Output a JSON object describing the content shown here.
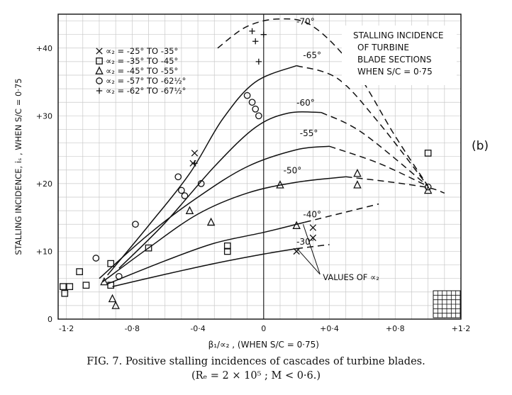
{
  "figure": {
    "panel_label": "(b)",
    "caption_line1": "FIG. 7.   Positive stalling incidences of cascades of turbine blades.",
    "caption_line2": "(Rₑ = 2 × 10⁵ ; M < 0·6.)"
  },
  "chart_data": {
    "type": "scatter",
    "title": "STALLING INCIDENCE OF TURBINE BLADE SECTIONS WHEN S/C = 0·75",
    "title_lines": [
      "STALLING INCIDENCE",
      "OF TURBINE",
      "BLADE SECTIONS",
      "WHEN S/C = 0·75"
    ],
    "xlabel": "β₁/∝₂ ,  (WHEN  S/C = 0·75)",
    "ylabel": "STALLING  INCIDENCE, iₛ , WHEN S/C = 0·75",
    "xlim": [
      -1.25,
      1.2
    ],
    "ylim": [
      0,
      45
    ],
    "grid": true,
    "legend_position": "top-left",
    "x_ticks": [
      {
        "v": -1.2,
        "label": "-1·2"
      },
      {
        "v": -0.8,
        "label": "-0·8"
      },
      {
        "v": -0.4,
        "label": "-0·4"
      },
      {
        "v": 0,
        "label": "0"
      },
      {
        "v": 0.4,
        "label": "+0·4"
      },
      {
        "v": 0.8,
        "label": "+0·8"
      },
      {
        "v": 1.2,
        "label": "+1·2"
      }
    ],
    "y_ticks": [
      {
        "v": 0,
        "label": "0"
      },
      {
        "v": 10,
        "label": "+10"
      },
      {
        "v": 20,
        "label": "+20"
      },
      {
        "v": 30,
        "label": "+30"
      },
      {
        "v": 40,
        "label": "+40"
      }
    ],
    "legend": [
      {
        "marker": "x",
        "label": "∝₂ = -25° TO -35°"
      },
      {
        "marker": "square",
        "label": "∝₂ = -35° TO -45°"
      },
      {
        "marker": "triangle",
        "label": "∝₂ = -45° TO -55°"
      },
      {
        "marker": "circle",
        "label": "∝₂ = -57° TO -62½°"
      },
      {
        "marker": "plus",
        "label": "∝₂ = -62° TO -67½°"
      }
    ],
    "curves": [
      {
        "name": "-30°",
        "label_at": [
          0.2,
          11
        ],
        "solid": [
          [
            -0.92,
            4.8
          ],
          [
            -0.6,
            6.6
          ],
          [
            -0.3,
            8.2
          ],
          [
            0.0,
            9.6
          ],
          [
            0.2,
            10.4
          ]
        ],
        "dashed": [
          [
            0.2,
            10.4
          ],
          [
            0.4,
            11.0
          ]
        ]
      },
      {
        "name": "-40°",
        "label_at": [
          0.24,
          15
        ],
        "solid": [
          [
            -0.95,
            5.2
          ],
          [
            -0.6,
            8.6
          ],
          [
            -0.3,
            11.2
          ],
          [
            0.0,
            12.8
          ],
          [
            0.25,
            14.3
          ]
        ],
        "dashed": [
          [
            0.25,
            14.3
          ],
          [
            0.7,
            17.0
          ]
        ]
      },
      {
        "name": "-50°",
        "label_at": [
          0.12,
          21.5
        ],
        "solid": [
          [
            -0.98,
            5.5
          ],
          [
            -0.7,
            10.5
          ],
          [
            -0.4,
            15.5
          ],
          [
            -0.1,
            18.6
          ],
          [
            0.2,
            20.2
          ],
          [
            0.5,
            21.0
          ]
        ],
        "dashed": [
          [
            0.5,
            21.0
          ],
          [
            0.75,
            20.3
          ],
          [
            1.0,
            19.4
          ],
          [
            1.1,
            18.6
          ]
        ]
      },
      {
        "name": "-55°",
        "label_at": [
          0.22,
          27.0
        ],
        "solid": [
          [
            -1.0,
            6.0
          ],
          [
            -0.7,
            12.5
          ],
          [
            -0.4,
            18.0
          ],
          [
            -0.1,
            22.5
          ],
          [
            0.2,
            25.0
          ],
          [
            0.4,
            25.5
          ]
        ],
        "dashed": [
          [
            0.4,
            25.5
          ],
          [
            0.7,
            23.0
          ],
          [
            1.0,
            19.6
          ]
        ]
      },
      {
        "name": "-60°",
        "label_at": [
          0.2,
          31.5
        ],
        "solid": [
          [
            -0.88,
            7.5
          ],
          [
            -0.6,
            14.2
          ],
          [
            -0.3,
            22.5
          ],
          [
            -0.05,
            28.3
          ],
          [
            0.15,
            30.4
          ],
          [
            0.35,
            30.5
          ]
        ],
        "dashed": [
          [
            0.35,
            30.5
          ],
          [
            0.6,
            27.5
          ],
          [
            1.0,
            19.6
          ]
        ]
      },
      {
        "name": "-65°",
        "label_at": [
          0.24,
          38.5
        ],
        "solid": [
          [
            -0.95,
            6.5
          ],
          [
            -0.7,
            13.8
          ],
          [
            -0.45,
            21.5
          ],
          [
            -0.25,
            29.5
          ],
          [
            -0.05,
            35.0
          ],
          [
            0.2,
            37.4
          ]
        ],
        "dashed": [
          [
            0.2,
            37.4
          ],
          [
            0.45,
            35.5
          ],
          [
            0.7,
            29.0
          ],
          [
            1.0,
            19.6
          ]
        ]
      },
      {
        "name": "-70°",
        "label_at": [
          0.2,
          43.5
        ],
        "solid": [],
        "dashed": [
          [
            -0.28,
            40.0
          ],
          [
            -0.1,
            43.2
          ],
          [
            0.1,
            44.3
          ],
          [
            0.3,
            43.2
          ],
          [
            0.55,
            37.0
          ],
          [
            0.8,
            27.0
          ],
          [
            1.0,
            19.6
          ]
        ]
      }
    ],
    "points": [
      {
        "marker": "x",
        "x": 0.3,
        "y": 13.5
      },
      {
        "marker": "x",
        "x": 0.3,
        "y": 12.0
      },
      {
        "marker": "x",
        "x": 0.2,
        "y": 10.0
      },
      {
        "marker": "x",
        "x": -0.42,
        "y": 24.5
      },
      {
        "marker": "x",
        "x": -0.43,
        "y": 23.0
      },
      {
        "marker": "square",
        "x": -1.22,
        "y": 4.8
      },
      {
        "marker": "square",
        "x": -1.21,
        "y": 3.8
      },
      {
        "marker": "square",
        "x": -1.18,
        "y": 4.8
      },
      {
        "marker": "square",
        "x": -1.12,
        "y": 7.0
      },
      {
        "marker": "square",
        "x": -1.08,
        "y": 5.0
      },
      {
        "marker": "square",
        "x": -0.93,
        "y": 8.2
      },
      {
        "marker": "square",
        "x": -0.93,
        "y": 5.0
      },
      {
        "marker": "square",
        "x": -0.7,
        "y": 10.5
      },
      {
        "marker": "square",
        "x": -0.22,
        "y": 10.8
      },
      {
        "marker": "square",
        "x": -0.22,
        "y": 10.0
      },
      {
        "marker": "square",
        "x": 1.0,
        "y": 24.5
      },
      {
        "marker": "triangle",
        "x": -0.97,
        "y": 5.5
      },
      {
        "marker": "triangle",
        "x": -0.92,
        "y": 3.0
      },
      {
        "marker": "triangle",
        "x": -0.9,
        "y": 2.0
      },
      {
        "marker": "triangle",
        "x": -0.45,
        "y": 16.0
      },
      {
        "marker": "triangle",
        "x": -0.32,
        "y": 14.3
      },
      {
        "marker": "triangle",
        "x": 0.1,
        "y": 19.8
      },
      {
        "marker": "triangle",
        "x": 0.2,
        "y": 13.8
      },
      {
        "marker": "triangle",
        "x": 0.57,
        "y": 21.5
      },
      {
        "marker": "triangle",
        "x": 0.57,
        "y": 19.8
      },
      {
        "marker": "triangle",
        "x": 1.0,
        "y": 19.0
      },
      {
        "marker": "circle",
        "x": -1.02,
        "y": 9.0
      },
      {
        "marker": "circle",
        "x": -0.88,
        "y": 6.3
      },
      {
        "marker": "circle",
        "x": -0.78,
        "y": 14.0
      },
      {
        "marker": "circle",
        "x": -0.52,
        "y": 21.0
      },
      {
        "marker": "circle",
        "x": -0.5,
        "y": 19.0
      },
      {
        "marker": "circle",
        "x": -0.48,
        "y": 18.2
      },
      {
        "marker": "circle",
        "x": -0.38,
        "y": 20.0
      },
      {
        "marker": "circle",
        "x": -0.1,
        "y": 33.0
      },
      {
        "marker": "circle",
        "x": -0.07,
        "y": 32.0
      },
      {
        "marker": "circle",
        "x": -0.05,
        "y": 31.0
      },
      {
        "marker": "circle",
        "x": -0.03,
        "y": 30.0
      },
      {
        "marker": "circle",
        "x": 1.0,
        "y": 19.5
      },
      {
        "marker": "plus",
        "x": -0.07,
        "y": 42.5
      },
      {
        "marker": "plus",
        "x": -0.05,
        "y": 41.0
      },
      {
        "marker": "plus",
        "x": 0.0,
        "y": 42.0
      },
      {
        "marker": "plus",
        "x": -0.03,
        "y": 38.0
      },
      {
        "marker": "plus",
        "x": -0.42,
        "y": 23.0
      }
    ],
    "annotation": {
      "text": "VALUES OF ∝₂",
      "arrow_to": [
        [
          0.2,
          10.5
        ],
        [
          0.24,
          14.0
        ]
      ],
      "anchor": [
        0.36,
        6.2
      ]
    }
  }
}
